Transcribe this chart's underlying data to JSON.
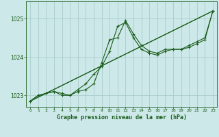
{
  "title": "Graphe pression niveau de la mer (hPa)",
  "background_color": "#cce8e8",
  "grid_color": "#aacccc",
  "line_color": "#1a5c1a",
  "xlim": [
    -0.5,
    23.5
  ],
  "ylim": [
    1022.7,
    1025.45
  ],
  "yticks": [
    1023,
    1024,
    1025
  ],
  "xticks": [
    0,
    1,
    2,
    3,
    4,
    5,
    6,
    7,
    8,
    9,
    10,
    11,
    12,
    13,
    14,
    15,
    16,
    17,
    18,
    19,
    20,
    21,
    22,
    23
  ],
  "series_main": {
    "x": [
      0,
      1,
      2,
      3,
      4,
      5,
      6,
      7,
      8,
      9,
      10,
      11,
      12,
      13,
      14,
      15,
      16,
      17,
      18,
      19,
      20,
      21,
      22,
      23
    ],
    "y": [
      1022.85,
      1023.0,
      1023.05,
      1023.1,
      1023.0,
      1023.0,
      1023.1,
      1023.15,
      1023.3,
      1023.85,
      1024.45,
      1024.5,
      1024.95,
      1024.6,
      1024.3,
      1024.15,
      1024.1,
      1024.2,
      1024.2,
      1024.2,
      1024.25,
      1024.35,
      1024.45,
      1025.2
    ]
  },
  "series_second": {
    "x": [
      0,
      1,
      2,
      3,
      4,
      5,
      6,
      7,
      8,
      9,
      10,
      11,
      12,
      13,
      14,
      15,
      16,
      17,
      18,
      19,
      20,
      21,
      22,
      23
    ],
    "y": [
      1022.85,
      1023.0,
      1023.05,
      1023.1,
      1023.05,
      1023.0,
      1023.15,
      1023.3,
      1023.55,
      1023.75,
      1024.15,
      1024.8,
      1024.9,
      1024.5,
      1024.2,
      1024.1,
      1024.05,
      1024.15,
      1024.2,
      1024.2,
      1024.3,
      1024.4,
      1024.5,
      1025.2
    ]
  },
  "series_line1": {
    "x": [
      0,
      23
    ],
    "y": [
      1022.85,
      1025.2
    ]
  },
  "series_line2": {
    "x": [
      0,
      23
    ],
    "y": [
      1022.85,
      1025.2
    ]
  },
  "figsize": [
    3.2,
    2.0
  ],
  "dpi": 100
}
